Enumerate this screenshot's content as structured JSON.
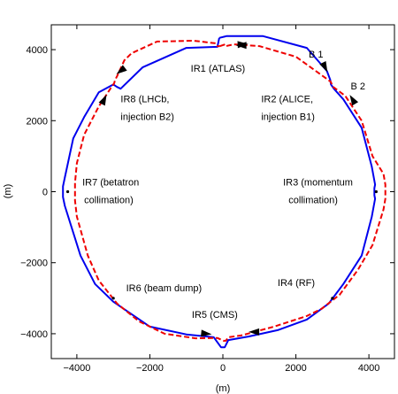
{
  "chart_data": {
    "type": "line",
    "title": "",
    "xlabel": "(m)",
    "ylabel": "(m)",
    "xlim": [
      -4700,
      4700
    ],
    "ylim": [
      -4700,
      4700
    ],
    "x_ticks": [
      -4000,
      -2000,
      0,
      2000,
      4000
    ],
    "x_tick_labels": [
      "−4000",
      "−2000",
      "0",
      "2000",
      "4000"
    ],
    "y_ticks": [
      -4000,
      -2000,
      0,
      2000,
      4000
    ],
    "y_tick_labels": [
      "−4000",
      "−2000",
      "0",
      "2000",
      "4000"
    ],
    "grid": false,
    "series": [
      {
        "name": "B 1",
        "color": "#0000ee",
        "style": "solid",
        "x": [
          -100,
          100,
          1100,
          2300,
          2850,
          2940,
          2960,
          3040,
          3300,
          3800,
          4080,
          4170,
          4150,
          4150,
          4170,
          4080,
          3800,
          3300,
          2900,
          2300,
          1500,
          700,
          150,
          50,
          -50,
          -250,
          -1000,
          -2000,
          -3000,
          -3500,
          -3900,
          -4330,
          -4380,
          -4380,
          -4330,
          -4100,
          -3800,
          -3400,
          -3000,
          -2900,
          -2800,
          -2200,
          -1000,
          -150,
          -100
        ],
        "y": [
          4330,
          4380,
          4380,
          4050,
          3400,
          3150,
          3020,
          2900,
          2600,
          1800,
          700,
          200,
          100,
          -100,
          -200,
          -700,
          -1800,
          -2600,
          -3150,
          -3600,
          -3900,
          -4080,
          -4180,
          -4380,
          -4380,
          -4100,
          -4020,
          -3800,
          -3100,
          -2600,
          -1800,
          -400,
          -150,
          150,
          400,
          1500,
          2100,
          2800,
          3020,
          2950,
          2900,
          3500,
          4050,
          4080,
          4330
        ]
      },
      {
        "name": "B 2",
        "color": "#ee0000",
        "style": "dashed",
        "x": [
          -80,
          60,
          80,
          300,
          1000,
          2000,
          2950,
          3020,
          3350,
          3800,
          4100,
          4400,
          4450,
          4450,
          4400,
          4100,
          3700,
          3200,
          2700,
          2300,
          1400,
          500,
          150,
          80,
          20,
          -150,
          -750,
          -1600,
          -2300,
          -2900,
          -3400,
          -3700,
          -4000,
          -4050,
          -4050,
          -4000,
          -3800,
          -3400,
          -3050,
          -2980,
          -2950,
          -2900,
          -2700,
          -2500,
          -1800,
          -800,
          -200,
          -150,
          -80
        ],
        "y": [
          4100,
          4150,
          4100,
          4150,
          4100,
          3800,
          3100,
          2950,
          2700,
          2000,
          1000,
          500,
          200,
          -200,
          -500,
          -1500,
          -2200,
          -2900,
          -3300,
          -3500,
          -3800,
          -4050,
          -4100,
          -4200,
          -4200,
          -4120,
          -4130,
          -4000,
          -3650,
          -3150,
          -2500,
          -1800,
          -700,
          -250,
          250,
          800,
          1600,
          2400,
          2950,
          3050,
          3150,
          3250,
          3700,
          3900,
          4230,
          4250,
          4180,
          4100,
          4100
        ]
      }
    ],
    "points": [
      {
        "x": -4250,
        "y": 0
      },
      {
        "x": 4200,
        "y": 0
      },
      {
        "x": 3000,
        "y": -3000
      },
      {
        "x": -3000,
        "y": -3000
      }
    ],
    "arrows": [
      {
        "color": "#0000ee",
        "x": 550,
        "y": 4150,
        "dx": 1,
        "dy": 0.05
      },
      {
        "color": "#ee0000",
        "x": 500,
        "y": 4120,
        "dx": -1,
        "dy": 0
      },
      {
        "color": "#0000ee",
        "x": 2800,
        "y": 3500,
        "dx": 0.5,
        "dy": -1
      },
      {
        "color": "#ee0000",
        "x": 3550,
        "y": 2600,
        "dx": -0.6,
        "dy": 1
      },
      {
        "color": "#0000ee",
        "x": -3250,
        "y": 2600,
        "dx": 0.5,
        "dy": 1
      },
      {
        "color": "#ee0000",
        "x": -2800,
        "y": 3400,
        "dx": -0.8,
        "dy": -0.6
      },
      {
        "color": "#0000ee",
        "x": 850,
        "y": -3950,
        "dx": -1,
        "dy": 0
      },
      {
        "color": "#ee0000",
        "x": -450,
        "y": -4000,
        "dx": 1,
        "dy": -0.1
      }
    ],
    "annotations": [
      {
        "id": "b1",
        "text": "B 1",
        "x": 2350,
        "y": 3780
      },
      {
        "id": "b2",
        "text": "B 2",
        "x": 3500,
        "y": 2880
      },
      {
        "id": "ir1",
        "text": "IR1 (ATLAS)",
        "x": -880,
        "y": 3380
      },
      {
        "id": "ir2",
        "text": "IR2 (ALICE,",
        "x": 1050,
        "y": 2520
      },
      {
        "id": "ir2b",
        "text": "injection B1)",
        "x": 1050,
        "y": 2020
      },
      {
        "id": "ir3",
        "text": "IR3 (momentum",
        "x": 1650,
        "y": 170
      },
      {
        "id": "ir3b",
        "text": "collimation)",
        "x": 1800,
        "y": -330
      },
      {
        "id": "ir4",
        "text": "IR4 (RF)",
        "x": 1500,
        "y": -2650
      },
      {
        "id": "ir5",
        "text": "IR5 (CMS)",
        "x": -850,
        "y": -3550
      },
      {
        "id": "ir6",
        "text": "IR6 (beam dump)",
        "x": -2650,
        "y": -2800
      },
      {
        "id": "ir7",
        "text": "IR7 (betatron",
        "x": -3850,
        "y": 170
      },
      {
        "id": "ir7b",
        "text": "collimation)",
        "x": -3800,
        "y": -330
      },
      {
        "id": "ir8",
        "text": "IR8 (LHCb,",
        "x": -2800,
        "y": 2520
      },
      {
        "id": "ir8b",
        "text": "injection B2)",
        "x": -2800,
        "y": 2020
      }
    ]
  }
}
